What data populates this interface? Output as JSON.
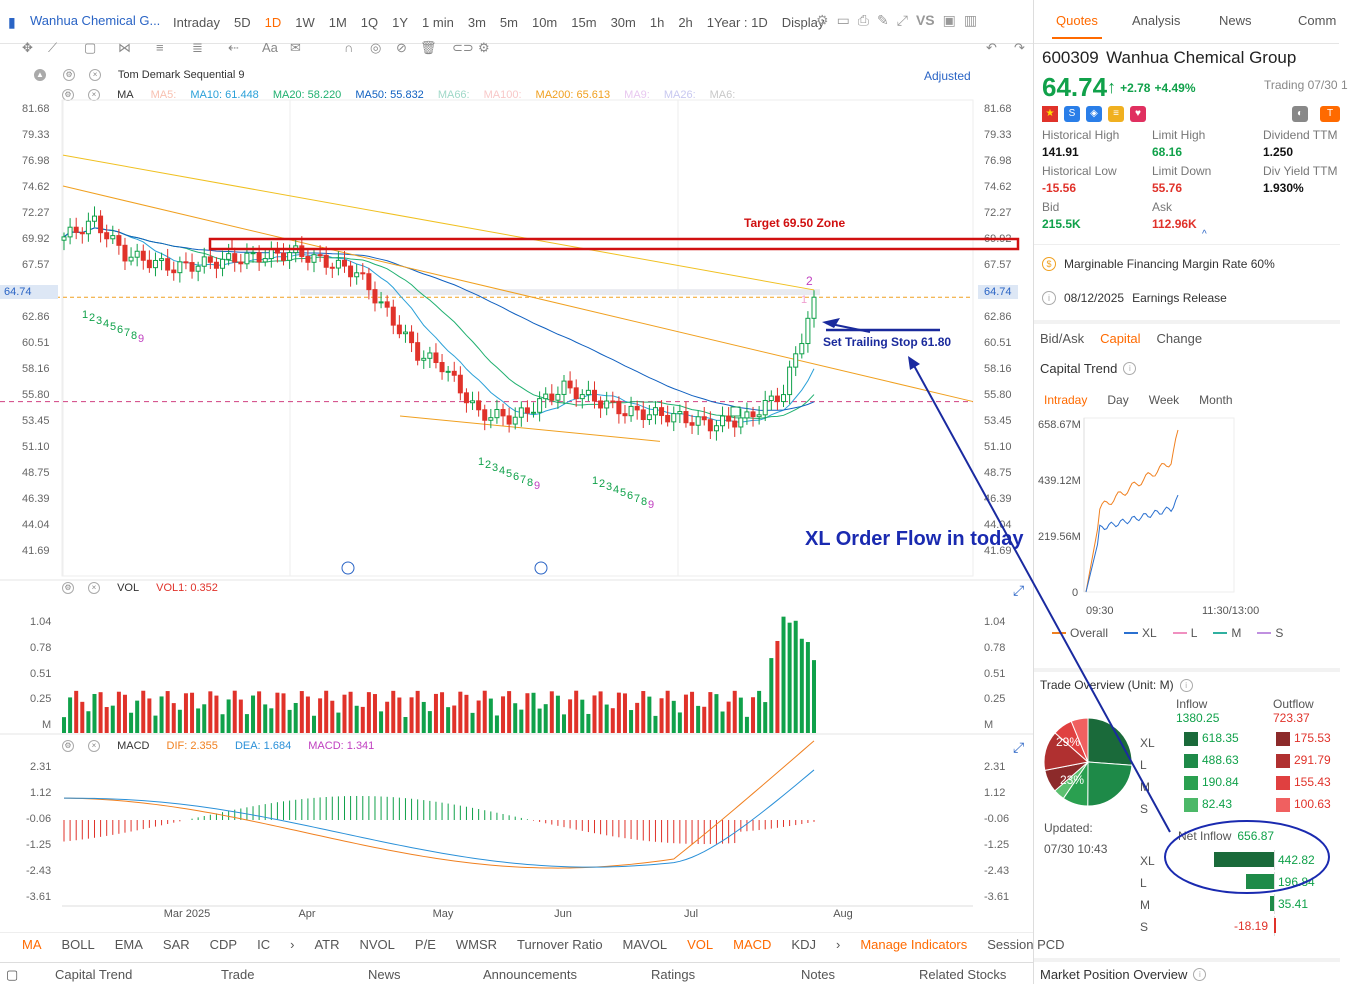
{
  "header": {
    "title": "Wanhua Chemical G...",
    "timeframes": [
      "Intraday",
      "5D",
      "1D",
      "1W",
      "1M",
      "1Q",
      "1Y",
      "1 min",
      "3m",
      "5m",
      "10m",
      "15m",
      "30m",
      "1h",
      "2h",
      "1Year : 1D",
      "Display"
    ],
    "active_timeframe": "1D",
    "watermark": "VS"
  },
  "indicators": {
    "td_label": "Tom Demark Sequential 9",
    "adjusted": "Adjusted",
    "ma_label": "MA",
    "ma_items": [
      {
        "label": "MA5:",
        "color": "#f8c0b0"
      },
      {
        "label": "MA10: 61.448",
        "color": "#2aa0d8"
      },
      {
        "label": "MA20: 58.220",
        "color": "#20b070"
      },
      {
        "label": "MA50: 55.832",
        "color": "#1060c0"
      },
      {
        "label": "MA66:",
        "color": "#a0d8c8"
      },
      {
        "label": "MA100:",
        "color": "#f8c8c8"
      },
      {
        "label": "MA200: 65.613",
        "color": "#f0a020"
      },
      {
        "label": "MA9:",
        "color": "#e8c8f0"
      },
      {
        "label": "MA26:",
        "color": "#c8c8f0"
      },
      {
        "label": "MA6:",
        "color": "#c8c8c8"
      }
    ],
    "vol_label": "VOL",
    "vol1": "VOL1: 0.352",
    "macd_label": "MACD",
    "dif": "DIF: 2.355",
    "dea": "DEA: 1.684",
    "macd": "MACD: 1.341"
  },
  "price_axis": [
    "81.68",
    "79.33",
    "76.98",
    "74.62",
    "72.27",
    "69.92",
    "67.57",
    "64.74",
    "62.86",
    "60.51",
    "58.16",
    "55.80",
    "53.45",
    "51.10",
    "48.75",
    "46.39",
    "44.04",
    "41.69"
  ],
  "current_price": "64.74",
  "vol_axis": [
    "1.04",
    "0.78",
    "0.51",
    "0.25",
    "M"
  ],
  "macd_axis": [
    "2.31",
    "1.12",
    "-0.06",
    "-1.25",
    "-2.43",
    "-3.61"
  ],
  "x_axis": [
    "Mar 2025",
    "Apr",
    "May",
    "Jun",
    "Jul",
    "Aug"
  ],
  "annotations": {
    "target": "Target 69.50 Zone",
    "trailing": "Set Trailing Stop 61.80",
    "xl": "XL Order Flow in today"
  },
  "td_counts": [
    "1",
    "2",
    "3",
    "4",
    "5",
    "6",
    "7",
    "8",
    "9"
  ],
  "bottom_indicators": [
    "MA",
    "BOLL",
    "EMA",
    "SAR",
    "CDP",
    "IC",
    "ATR",
    "NVOL",
    "P/E",
    "WMSR",
    "Turnover Ratio",
    "MAVOL",
    "VOL",
    "MACD",
    "KDJ",
    "Manage Indicators",
    "Session PCD"
  ],
  "footer_tabs": [
    "Capital Trend",
    "Trade",
    "News",
    "Announcements",
    "Ratings",
    "Notes",
    "Related Stocks"
  ],
  "quote": {
    "tabs": [
      "Quotes",
      "Analysis",
      "News",
      "Comm"
    ],
    "code": "600309",
    "name": "Wanhua Chemical Group",
    "price": "64.74",
    "arrow": "↑",
    "change": "+2.78",
    "pct": "+4.49%",
    "status": "Trading 07/30 1",
    "stats": [
      {
        "label": "Historical High",
        "value": "141.91",
        "color": "#111"
      },
      {
        "label": "Limit High",
        "value": "68.16",
        "color": "#10a14a"
      },
      {
        "label": "Dividend TTM",
        "value": "1.250",
        "color": "#111"
      },
      {
        "label": "Historical Low",
        "value": "-15.56",
        "color": "#e0322a"
      },
      {
        "label": "Limit Down",
        "value": "55.76",
        "color": "#e0322a"
      },
      {
        "label": "Div Yield TTM",
        "value": "1.930%",
        "color": "#111"
      },
      {
        "label": "Bid",
        "value": "215.5K",
        "color": "#10a14a"
      },
      {
        "label": "Ask",
        "value": "112.96K",
        "color": "#e0322a"
      }
    ],
    "margin": "Marginable Financing Margin Rate 60%",
    "earnings_date": "08/12/2025",
    "earnings_label": "Earnings Release"
  },
  "capital": {
    "tabs": [
      "Bid/Ask",
      "Capital",
      "Change"
    ],
    "active_tab": "Capital",
    "trend_title": "Capital Trend",
    "periods": [
      "Intraday",
      "Day",
      "Week",
      "Month"
    ],
    "y_labels": [
      "658.67M",
      "439.12M",
      "219.56M",
      "0"
    ],
    "x_labels": [
      "09:30",
      "11:30/13:00"
    ],
    "legend": [
      "Overall",
      "XL",
      "L",
      "M",
      "S"
    ]
  },
  "trade": {
    "title": "Trade Overview (Unit: M)",
    "inflow_label": "Inflow",
    "inflow_total": "1380.25",
    "outflow_label": "Outflow",
    "outflow_total": "723.37",
    "rows": [
      {
        "name": "XL",
        "in": "618.35",
        "out": "175.53"
      },
      {
        "name": "L",
        "in": "488.63",
        "out": "291.79"
      },
      {
        "name": "M",
        "in": "190.84",
        "out": "155.43"
      },
      {
        "name": "S",
        "in": "82.43",
        "out": "100.63"
      }
    ],
    "pie_a": "29%",
    "pie_b": "23%",
    "updated_label": "Updated:",
    "updated_time": "07/30 10:43",
    "net_label": "Net Inflow",
    "net_total": "656.87",
    "net_rows": [
      {
        "name": "XL",
        "value": "442.82"
      },
      {
        "name": "L",
        "value": "196.84"
      },
      {
        "name": "M",
        "value": "35.41"
      },
      {
        "name": "S",
        "value": "-18.19"
      }
    ]
  },
  "market_position": "Market Position Overview"
}
